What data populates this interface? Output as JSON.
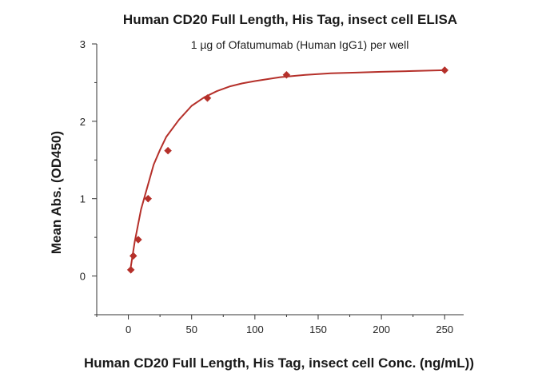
{
  "chart_data": {
    "type": "scatter",
    "title": "Human CD20 Full Length, His Tag, insect cell ELISA",
    "subtitle": "1 µg of Ofatumumab (Human IgG1) per well",
    "xlabel": "Human CD20 Full Length, His Tag, insect cell Conc. (ng/mL))",
    "ylabel": "Mean Abs. (OD450)",
    "xlim": [
      -25,
      265
    ],
    "ylim": [
      -0.5,
      3
    ],
    "xticks": [
      0,
      50,
      100,
      150,
      200,
      250
    ],
    "yticks": [
      0,
      1,
      2,
      3
    ],
    "grid": false,
    "series": [
      {
        "color": "#B5302A",
        "marker": "diamond",
        "x": [
          1.95,
          3.9,
          7.8,
          15.6,
          31.3,
          62.5,
          125,
          250
        ],
        "y": [
          0.08,
          0.26,
          0.47,
          1.0,
          1.62,
          2.3,
          2.6,
          2.66
        ]
      }
    ],
    "fit_curve": {
      "color": "#B5302A",
      "x": [
        1.95,
        5,
        10,
        15,
        20,
        25,
        30,
        40,
        50,
        60,
        70,
        80,
        90,
        100,
        120,
        140,
        160,
        180,
        200,
        225,
        250
      ],
      "y": [
        0.12,
        0.44,
        0.86,
        1.15,
        1.44,
        1.63,
        1.8,
        2.02,
        2.2,
        2.31,
        2.39,
        2.45,
        2.49,
        2.52,
        2.57,
        2.6,
        2.62,
        2.63,
        2.64,
        2.65,
        2.66
      ]
    }
  }
}
